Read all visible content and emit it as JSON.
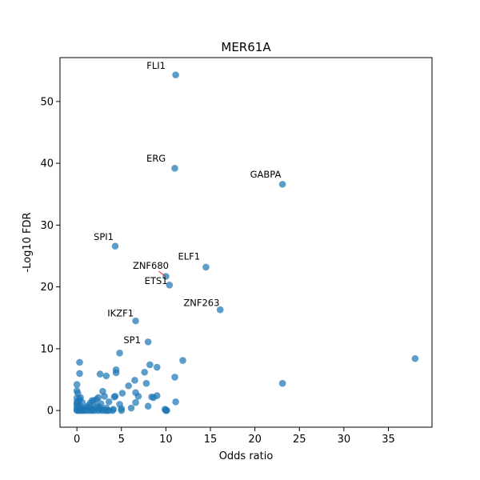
{
  "chart_data": {
    "type": "scatter",
    "title": "MER61A",
    "xlabel": "Odds ratio",
    "ylabel": "-Log10 FDR",
    "xlim": [
      -1.9,
      39.9
    ],
    "ylim": [
      -2.7,
      57.1
    ],
    "xticks": [
      0,
      5,
      10,
      15,
      20,
      25,
      30,
      35
    ],
    "yticks": [
      0,
      10,
      20,
      30,
      40,
      50
    ],
    "grid": false,
    "legend": "none",
    "color": "#1f77b4",
    "annotation_arrow_color": "#d62728",
    "points": [
      [
        11.1,
        54.3
      ],
      [
        11.0,
        39.2
      ],
      [
        23.1,
        36.6
      ],
      [
        4.3,
        26.6
      ],
      [
        14.5,
        23.2
      ],
      [
        10.0,
        21.7
      ],
      [
        10.4,
        20.3
      ],
      [
        16.1,
        16.3
      ],
      [
        6.6,
        14.5
      ],
      [
        8.0,
        11.1
      ],
      [
        38.0,
        8.4
      ],
      [
        0.3,
        7.8
      ],
      [
        11.9,
        8.1
      ],
      [
        4.8,
        9.3
      ],
      [
        8.2,
        7.4
      ],
      [
        9.0,
        7.0
      ],
      [
        4.4,
        6.6
      ],
      [
        4.4,
        6.1
      ],
      [
        7.6,
        6.2
      ],
      [
        11.0,
        5.4
      ],
      [
        2.6,
        5.9
      ],
      [
        3.3,
        5.6
      ],
      [
        0.3,
        6.0
      ],
      [
        6.5,
        4.9
      ],
      [
        5.8,
        4.0
      ],
      [
        7.8,
        4.4
      ],
      [
        23.1,
        4.4
      ],
      [
        0.0,
        4.2
      ],
      [
        0.0,
        3.2
      ],
      [
        0.1,
        2.8
      ],
      [
        2.9,
        3.1
      ],
      [
        5.1,
        2.8
      ],
      [
        6.6,
        2.9
      ],
      [
        0.4,
        2.1
      ],
      [
        2.4,
        2.1
      ],
      [
        3.1,
        2.3
      ],
      [
        4.3,
        2.3
      ],
      [
        4.2,
        2.2
      ],
      [
        6.9,
        2.3
      ],
      [
        8.6,
        2.1
      ],
      [
        9.0,
        2.4
      ],
      [
        8.4,
        2.2
      ],
      [
        1.9,
        1.6
      ],
      [
        2.2,
        1.8
      ],
      [
        3.6,
        1.4
      ],
      [
        6.6,
        1.3
      ],
      [
        11.1,
        1.4
      ],
      [
        0.0,
        1.0
      ],
      [
        0.3,
        0.9
      ],
      [
        1.5,
        1.2
      ],
      [
        2.7,
        1.1
      ],
      [
        4.8,
        1.0
      ],
      [
        0.0,
        0.6
      ],
      [
        1.0,
        0.5
      ],
      [
        2.0,
        0.6
      ],
      [
        3.3,
        0.4
      ],
      [
        4.1,
        0.2
      ],
      [
        5.0,
        0.3
      ],
      [
        6.1,
        0.4
      ],
      [
        8.0,
        0.7
      ],
      [
        0.0,
        0.0
      ],
      [
        0.2,
        0.0
      ],
      [
        0.4,
        0.0
      ],
      [
        0.6,
        0.0
      ],
      [
        0.8,
        0.0
      ],
      [
        1.1,
        0.0
      ],
      [
        1.4,
        0.0
      ],
      [
        1.7,
        0.0
      ],
      [
        2.0,
        0.0
      ],
      [
        2.4,
        0.0
      ],
      [
        2.8,
        0.0
      ],
      [
        3.2,
        0.0
      ],
      [
        3.6,
        0.0
      ],
      [
        4.0,
        0.0
      ],
      [
        0.0,
        0.2
      ],
      [
        0.1,
        0.1
      ],
      [
        0.5,
        0.3
      ],
      [
        1.2,
        0.2
      ],
      [
        1.8,
        0.1
      ],
      [
        2.5,
        0.2
      ],
      [
        3.0,
        0.1
      ],
      [
        0.2,
        0.5
      ],
      [
        0.6,
        1.3
      ],
      [
        1.3,
        0.8
      ],
      [
        1.7,
        1.6
      ],
      [
        2.3,
        0.7
      ],
      [
        0.1,
        1.5
      ],
      [
        0.0,
        2.0
      ],
      [
        10.0,
        0.0
      ],
      [
        10.0,
        0.1
      ],
      [
        9.9,
        0.2
      ],
      [
        10.1,
        0.0
      ],
      [
        0.9,
        0.3
      ],
      [
        2.6,
        0.5
      ],
      [
        3.4,
        0.0
      ],
      [
        0.3,
        1.8
      ],
      [
        5.0,
        0.0
      ],
      [
        1.6,
        0.4
      ],
      [
        0.0,
        1.3
      ],
      [
        0.7,
        0.1
      ]
    ],
    "annotations": [
      {
        "label": "FLI1",
        "x": 11.1,
        "y": 54.3,
        "tx": 8.9,
        "ty": 55.3
      },
      {
        "label": "ERG",
        "x": 11.0,
        "y": 39.2,
        "tx": 8.9,
        "ty": 40.3
      },
      {
        "label": "GABPA",
        "x": 23.1,
        "y": 36.6,
        "tx": 21.2,
        "ty": 37.7
      },
      {
        "label": "SPI1",
        "x": 4.3,
        "y": 26.6,
        "tx": 3.0,
        "ty": 27.6
      },
      {
        "label": "ELF1",
        "x": 14.5,
        "y": 23.2,
        "tx": 12.6,
        "ty": 24.4
      },
      {
        "label": "ZNF680",
        "x": 10.0,
        "y": 21.7,
        "tx": 8.3,
        "ty": 22.9,
        "arrow": true
      },
      {
        "label": "ETS1",
        "x": 10.4,
        "y": 20.3,
        "tx": 8.9,
        "ty": 20.5
      },
      {
        "label": "ZNF263",
        "x": 16.1,
        "y": 16.3,
        "tx": 14.0,
        "ty": 16.9
      },
      {
        "label": "IKZF1",
        "x": 6.6,
        "y": 14.5,
        "tx": 4.9,
        "ty": 15.2
      },
      {
        "label": "SP1",
        "x": 8.0,
        "y": 11.1,
        "tx": 6.2,
        "ty": 10.9
      }
    ]
  }
}
